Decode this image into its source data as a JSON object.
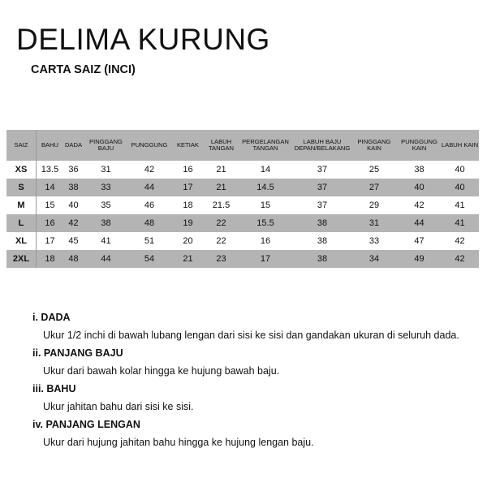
{
  "title": "DELIMA KURUNG",
  "subtitle": "CARTA SAIZ (INCI)",
  "table": {
    "headers": [
      "SAIZ",
      "BAHU",
      "DADA",
      "PINGGANG BAJU",
      "PUNGGUNG",
      "KETIAK",
      "LABUH TANGAN",
      "PERGELANGAN TANGAN",
      "LABUH BAJU DEPAN/BELAKANG",
      "PINGGANG KAIN",
      "PUNGGUNG KAIN",
      "LABUH KAIN"
    ],
    "rows": [
      [
        "XS",
        "13.5",
        "36",
        "31",
        "42",
        "16",
        "21",
        "14",
        "37",
        "25",
        "38",
        "40"
      ],
      [
        "S",
        "14",
        "38",
        "33",
        "44",
        "17",
        "21",
        "14.5",
        "37",
        "27",
        "40",
        "40"
      ],
      [
        "M",
        "15",
        "40",
        "35",
        "46",
        "18",
        "21.5",
        "15",
        "37",
        "29",
        "42",
        "41"
      ],
      [
        "L",
        "16",
        "42",
        "38",
        "48",
        "19",
        "22",
        "15.5",
        "38",
        "31",
        "44",
        "41"
      ],
      [
        "XL",
        "17",
        "45",
        "41",
        "51",
        "20",
        "22",
        "16",
        "38",
        "33",
        "47",
        "42"
      ],
      [
        "2XL",
        "18",
        "48",
        "44",
        "54",
        "21",
        "23",
        "17",
        "38",
        "34",
        "49",
        "42"
      ]
    ]
  },
  "notes": [
    {
      "title": "i. DADA",
      "text": "Ukur 1/2 inchi di bawah lubang lengan dari sisi ke sisi dan gandakan ukuran di seluruh dada."
    },
    {
      "title": "ii. PANJANG BAJU",
      "text": "Ukur dari bawah kolar hingga ke hujung bawah baju."
    },
    {
      "title": "iii. BAHU",
      "text": "Ukur jahitan bahu dari sisi ke sisi."
    },
    {
      "title": "iv. PANJANG LENGAN",
      "text": "Ukur dari hujung jahitan bahu hingga ke hujung lengan baju."
    }
  ],
  "colors": {
    "row_gray": "#b4b4b4"
  }
}
